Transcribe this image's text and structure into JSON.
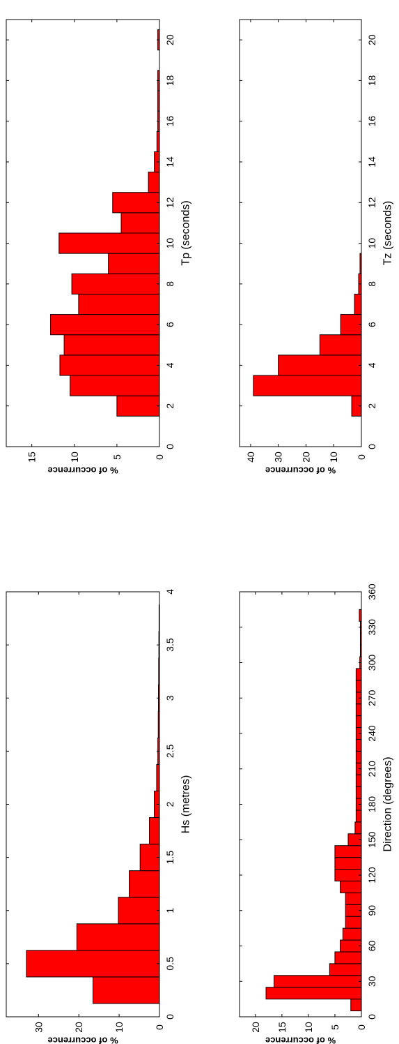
{
  "chart_data": [
    {
      "id": "hs",
      "type": "bar",
      "title": "",
      "xlabel": "Hs (metres)",
      "ylabel": "% of occurrence",
      "xlim": [
        0,
        4
      ],
      "ylim": [
        0,
        38
      ],
      "xticks": [
        0,
        0.5,
        1,
        1.5,
        2,
        2.5,
        3,
        3.5,
        4
      ],
      "xtick_labels": [
        "0",
        "0.5",
        "1",
        "1.5",
        "2",
        "2.5",
        "3",
        "3.5",
        "4"
      ],
      "yticks": [
        0,
        10,
        20,
        30
      ],
      "ytick_labels": [
        "0",
        "10",
        "20",
        "30"
      ],
      "bar_width": 0.25,
      "x": [
        0.25,
        0.5,
        0.75,
        1.0,
        1.25,
        1.5,
        1.75,
        2.0,
        2.25,
        2.5,
        2.75,
        3.0,
        3.25,
        3.5,
        3.75
      ],
      "values": [
        16.5,
        33,
        20.5,
        10.2,
        7.5,
        4.8,
        2.5,
        1.3,
        0.7,
        0.4,
        0.3,
        0.25,
        0.2,
        0.15,
        0.1
      ],
      "color": "#ff0000",
      "grid": false
    },
    {
      "id": "tp",
      "type": "bar",
      "title": "",
      "xlabel": "Tp (seconds)",
      "ylabel": "% of occurrence",
      "xlim": [
        0,
        21
      ],
      "ylim": [
        0,
        18
      ],
      "xticks": [
        0,
        2,
        4,
        6,
        8,
        10,
        12,
        14,
        16,
        18,
        20
      ],
      "xtick_labels": [
        "0",
        "2",
        "4",
        "6",
        "8",
        "10",
        "12",
        "14",
        "16",
        "18",
        "20"
      ],
      "yticks": [
        0,
        5,
        10,
        15
      ],
      "ytick_labels": [
        "0",
        "5",
        "10",
        "15"
      ],
      "bar_width": 1,
      "x": [
        2,
        3,
        4,
        5,
        6,
        7,
        8,
        9,
        10,
        11,
        12,
        13,
        14,
        15,
        16,
        17,
        18,
        20
      ],
      "values": [
        5,
        10.5,
        11.7,
        11.2,
        12.8,
        9.5,
        10.3,
        6,
        11.8,
        4.5,
        5.5,
        1.3,
        0.6,
        0.3,
        0.2,
        0.2,
        0.2,
        0.2
      ],
      "color": "#ff0000",
      "grid": false
    },
    {
      "id": "dir",
      "type": "bar",
      "title": "",
      "xlabel": "Direction (degrees)",
      "ylabel": "% of occurrence",
      "xlim": [
        0,
        360
      ],
      "ylim": [
        0,
        23
      ],
      "xticks": [
        0,
        30,
        60,
        90,
        120,
        150,
        180,
        210,
        240,
        270,
        300,
        330,
        360
      ],
      "xtick_labels": [
        "0",
        "30",
        "60",
        "90",
        "120",
        "150",
        "180",
        "210",
        "240",
        "270",
        "300",
        "330",
        "360"
      ],
      "yticks": [
        0,
        5,
        10,
        15,
        20
      ],
      "ytick_labels": [
        "0",
        "5",
        "10",
        "15",
        "20"
      ],
      "bar_width": 10,
      "x": [
        10,
        20,
        30,
        40,
        50,
        60,
        70,
        80,
        90,
        100,
        110,
        120,
        130,
        140,
        150,
        160,
        170,
        180,
        190,
        200,
        210,
        220,
        230,
        240,
        250,
        260,
        270,
        280,
        290,
        300,
        310,
        320,
        330,
        340
      ],
      "values": [
        2,
        18,
        16.5,
        6,
        5,
        4,
        3.5,
        3,
        3,
        3,
        4,
        5,
        5,
        5,
        2.5,
        1.2,
        1,
        1,
        1,
        1,
        1,
        1,
        1,
        1,
        1,
        1,
        1,
        1,
        1,
        0.3,
        0.2,
        0.2,
        0.2,
        0.4
      ],
      "color": "#ff0000",
      "grid": false
    },
    {
      "id": "tz",
      "type": "bar",
      "title": "",
      "xlabel": "Tz (seconds)",
      "ylabel": "% of occurrence",
      "xlim": [
        0,
        21
      ],
      "ylim": [
        0,
        44
      ],
      "xticks": [
        0,
        2,
        4,
        6,
        8,
        10,
        12,
        14,
        16,
        18,
        20
      ],
      "xtick_labels": [
        "0",
        "2",
        "4",
        "6",
        "8",
        "10",
        "12",
        "14",
        "16",
        "18",
        "20"
      ],
      "yticks": [
        0,
        10,
        20,
        30,
        40
      ],
      "ytick_labels": [
        "0",
        "10",
        "20",
        "30",
        "40"
      ],
      "bar_width": 1,
      "x": [
        2,
        3,
        4,
        5,
        6,
        7,
        8,
        9
      ],
      "values": [
        3.5,
        39,
        30,
        15,
        7.5,
        2.5,
        1,
        0.5
      ],
      "color": "#ff0000",
      "grid": false
    }
  ]
}
